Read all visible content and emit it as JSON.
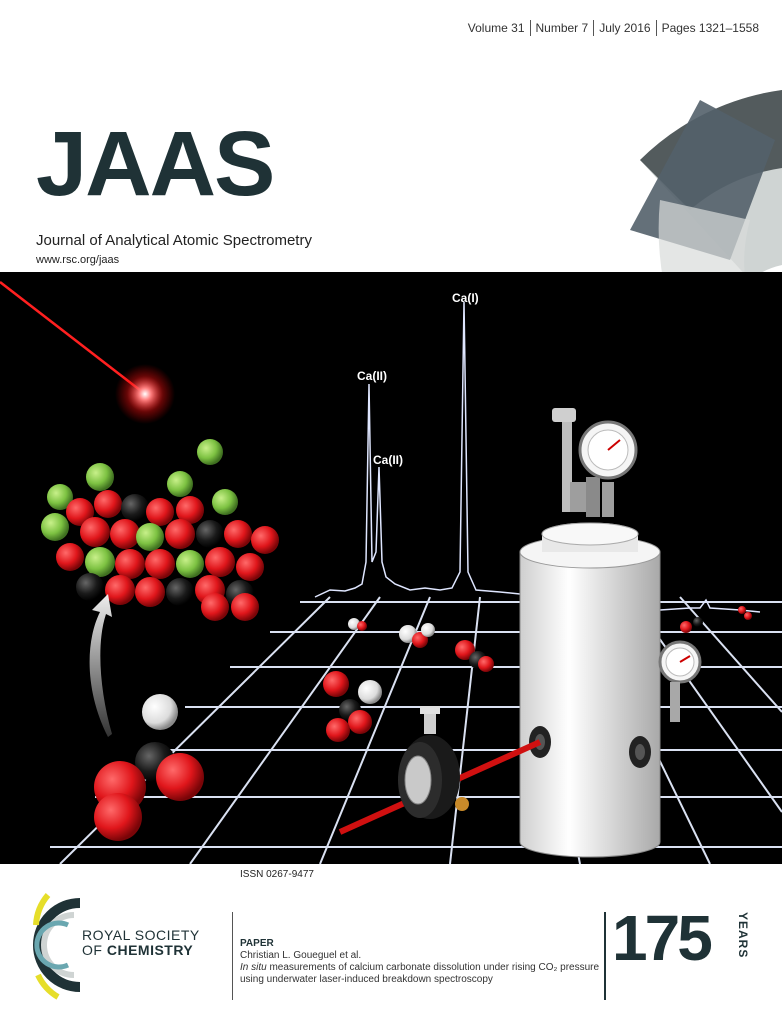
{
  "issue_info": {
    "volume": "Volume 31",
    "number": "Number 7",
    "date": "July 2016",
    "pages": "Pages 1321–1558"
  },
  "journal": {
    "title": "JAAS",
    "subtitle": "Journal of Analytical Atomic Spectrometry",
    "url": "www.rsc.org/jaas"
  },
  "figure": {
    "peak_labels": [
      "Ca(I)",
      "Ca(II)",
      "Ca(II)"
    ]
  },
  "issn": "ISSN 0267-9477",
  "publisher": {
    "line1": "ROYAL SOCIETY",
    "line2_prefix": "OF ",
    "line2_bold": "CHEMISTRY"
  },
  "paper": {
    "label": "PAPER",
    "authors": "Christian L. Goueguel et al.",
    "title_italic": "In situ",
    "title_rest": " measurements of calcium carbonate dissolution under rising CO₂ pressure using underwater laser-induced breakdown spectroscopy"
  },
  "anniversary": {
    "number": "175",
    "word": "YEARS"
  },
  "colors": {
    "brand_dark": "#1f3236",
    "laser_red": "#e0161b",
    "calcium_green": "#7dc242",
    "grid_white": "#eaf2ff"
  }
}
